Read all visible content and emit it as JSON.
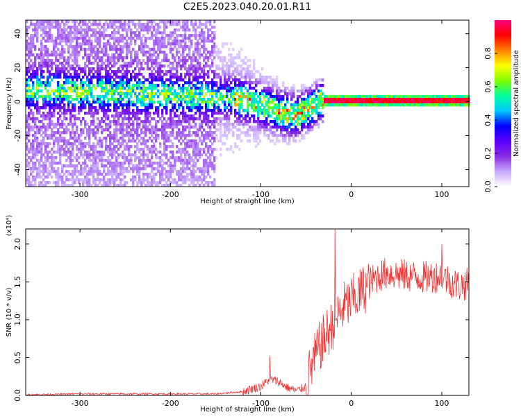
{
  "title": "C2E5.2023.040.20.01.R11",
  "chart_data": [
    {
      "type": "heatmap",
      "xlabel": "Height of straight line (km)",
      "ylabel": "Frequency (Hz)",
      "xlim": [
        -360,
        130
      ],
      "ylim": [
        -50,
        48
      ],
      "xticks": [
        -300,
        -200,
        -100,
        0,
        100
      ],
      "yticks": [
        -40,
        -20,
        0,
        20,
        40
      ],
      "colorbar": {
        "label": "Normalized spectral amplitude",
        "range": [
          0.0,
          1.0
        ],
        "ticks": [
          "0.0",
          "0.2",
          "0.4",
          "0.6",
          "0.8"
        ],
        "colors": [
          "#ffffff",
          "#c8a8ff",
          "#8a2be2",
          "#5a00ff",
          "#0000ff",
          "#00c8ff",
          "#00ffa0",
          "#7fff00",
          "#ffff00",
          "#ff8000",
          "#ff0000",
          "#ff0080"
        ]
      },
      "ridge": {
        "x": [
          -360,
          -300,
          -250,
          -200,
          -150,
          -120,
          -100,
          -80,
          -60,
          -45,
          -35,
          -20,
          0,
          50,
          100,
          130
        ],
        "frequency": [
          7,
          6,
          5,
          4,
          3,
          1,
          -2,
          -6,
          -8,
          -4,
          0,
          1,
          1,
          1,
          1,
          1
        ]
      }
    },
    {
      "type": "line",
      "xlabel": "Height of straight line (km)",
      "ylabel": "SNR (10 * v/v)",
      "scale_label": "(x10⁴)",
      "xlim": [
        -360,
        130
      ],
      "ylim": [
        0,
        2.2
      ],
      "xticks": [
        -300,
        -200,
        -100,
        0,
        100
      ],
      "yticks": [
        "0.0",
        "0.5",
        "1.0",
        "1.5",
        "2.0"
      ],
      "series": [
        {
          "color": "#ee3333",
          "x": [
            -360,
            -300,
            -200,
            -150,
            -120,
            -100,
            -90,
            -80,
            -70,
            -60,
            -50,
            -45,
            -40,
            -35,
            -30,
            -25,
            -20,
            -15,
            -10,
            -5,
            0,
            10,
            20,
            30,
            40,
            60,
            80,
            100,
            110,
            120,
            130
          ],
          "y": [
            0.01,
            0.02,
            0.02,
            0.02,
            0.05,
            0.12,
            0.22,
            0.18,
            0.1,
            0.06,
            0.12,
            0.35,
            0.5,
            0.65,
            0.75,
            0.85,
            0.95,
            1.05,
            1.15,
            1.2,
            1.25,
            1.35,
            1.48,
            1.58,
            1.62,
            1.58,
            1.56,
            1.58,
            1.5,
            1.45,
            1.48
          ]
        }
      ],
      "spikes": [
        {
          "x": -18,
          "y": 2.2
        },
        {
          "x": -90,
          "y": 0.52
        },
        {
          "x": 100,
          "y": 2.0
        }
      ]
    }
  ]
}
